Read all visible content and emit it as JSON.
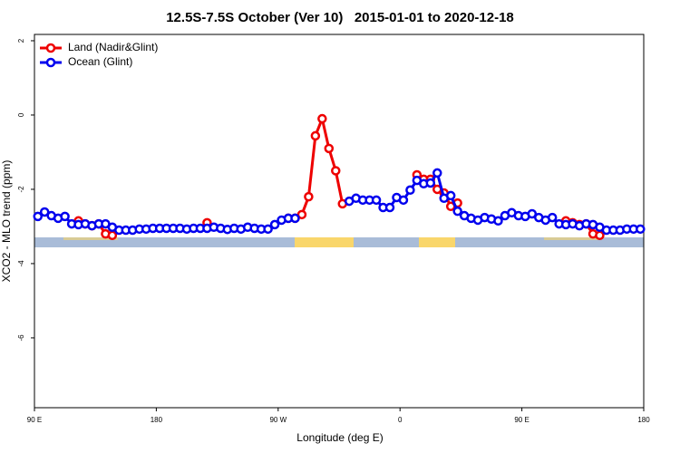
{
  "chart_data": {
    "type": "line",
    "title": "12.5S-7.5S October (Ver 10)   2015-01-01 to 2020-12-18",
    "xlabel": "Longitude (deg E)",
    "ylabel": "XCO2 - MLO trend (ppm)",
    "xlim": [
      90,
      540
    ],
    "ylim": [
      -7.88,
      2.17
    ],
    "xticks": [
      {
        "value": 90,
        "label": "90 E"
      },
      180,
      {
        "value": 270,
        "label": "90 W"
      },
      {
        "value": 360,
        "label": "0"
      },
      {
        "value": 450,
        "label": "90 E"
      },
      {
        "value": 540,
        "label": "180"
      }
    ],
    "yticks": [
      -6,
      -4,
      -2,
      0,
      2
    ],
    "legend": "top-left",
    "x": [
      92.5,
      97.5,
      102.5,
      107.5,
      112.5,
      117.5,
      122.5,
      127.5,
      132.5,
      137.5,
      142.5,
      147.5,
      152.5,
      157.5,
      162.5,
      167.5,
      172.5,
      177.5,
      182.5,
      187.5,
      192.5,
      197.5,
      202.5,
      207.5,
      212.5,
      217.5,
      222.5,
      227.5,
      232.5,
      237.5,
      242.5,
      247.5,
      252.5,
      257.5,
      262.5,
      267.5,
      272.5,
      277.5,
      282.5,
      287.5,
      292.5,
      297.5,
      302.5,
      307.5,
      312.5,
      317.5,
      322.5,
      327.5,
      332.5,
      337.5,
      342.5,
      347.5,
      352.5,
      357.5,
      362.5,
      367.5,
      372.5,
      377.5,
      382.5,
      387.5,
      392.5,
      397.5,
      402.5,
      407.5,
      412.5,
      417.5,
      422.5,
      427.5,
      432.5,
      437.5,
      442.5,
      447.5,
      452.5,
      457.5,
      462.5,
      467.5,
      472.5,
      477.5,
      482.5,
      487.5,
      492.5,
      497.5,
      502.5,
      507.5,
      512.5,
      517.5,
      522.5,
      527.5,
      532.5,
      537.5
    ],
    "series": [
      {
        "name": "Land (Nadir&Glint)",
        "color": "#ee0000",
        "values": [
          null,
          null,
          null,
          null,
          null,
          null,
          -2.85,
          -2.93,
          -2.98,
          -2.93,
          -3.2,
          -3.24,
          null,
          null,
          null,
          null,
          null,
          null,
          null,
          null,
          null,
          null,
          null,
          null,
          null,
          -2.9,
          null,
          null,
          null,
          null,
          null,
          null,
          null,
          null,
          null,
          null,
          null,
          -2.78,
          -2.78,
          -2.68,
          -2.2,
          -0.56,
          -0.1,
          -0.9,
          -1.5,
          -2.39,
          null,
          null,
          null,
          null,
          null,
          null,
          null,
          null,
          null,
          null,
          -1.61,
          -1.73,
          -1.73,
          -2.0,
          -2.1,
          -2.46,
          -2.37,
          null,
          null,
          null,
          null,
          null,
          null,
          null,
          null,
          null,
          null,
          null,
          null,
          null,
          null,
          null,
          -2.85,
          -2.9,
          -2.95,
          -2.93,
          -3.2,
          -3.24,
          null,
          null,
          null,
          null,
          null,
          null
        ]
      },
      {
        "name": "Ocean (Glint)",
        "color": "#0000ee",
        "values": [
          -2.73,
          -2.61,
          -2.71,
          -2.78,
          -2.73,
          -2.93,
          -2.95,
          -2.93,
          -2.98,
          -2.93,
          -2.93,
          -3.02,
          -3.1,
          -3.1,
          -3.1,
          -3.07,
          -3.07,
          -3.05,
          -3.05,
          -3.05,
          -3.05,
          -3.05,
          -3.07,
          -3.05,
          -3.05,
          -3.05,
          -3.02,
          -3.05,
          -3.08,
          -3.05,
          -3.07,
          -3.02,
          -3.05,
          -3.07,
          -3.07,
          -2.95,
          -2.83,
          -2.78,
          -2.78,
          null,
          null,
          null,
          null,
          null,
          null,
          null,
          -2.32,
          -2.24,
          -2.29,
          -2.29,
          -2.29,
          -2.49,
          -2.49,
          -2.22,
          -2.29,
          -2.02,
          -1.76,
          -1.85,
          -1.83,
          -1.56,
          -2.24,
          -2.17,
          -2.59,
          -2.71,
          -2.78,
          -2.83,
          -2.76,
          -2.8,
          -2.85,
          -2.71,
          -2.63,
          -2.71,
          -2.73,
          -2.66,
          -2.76,
          -2.83,
          -2.76,
          -2.93,
          -2.95,
          -2.93,
          -2.98,
          -2.93,
          -2.95,
          -3.02,
          -3.1,
          -3.1,
          -3.1,
          -3.07,
          -3.07,
          -3.07
        ]
      }
    ]
  }
}
